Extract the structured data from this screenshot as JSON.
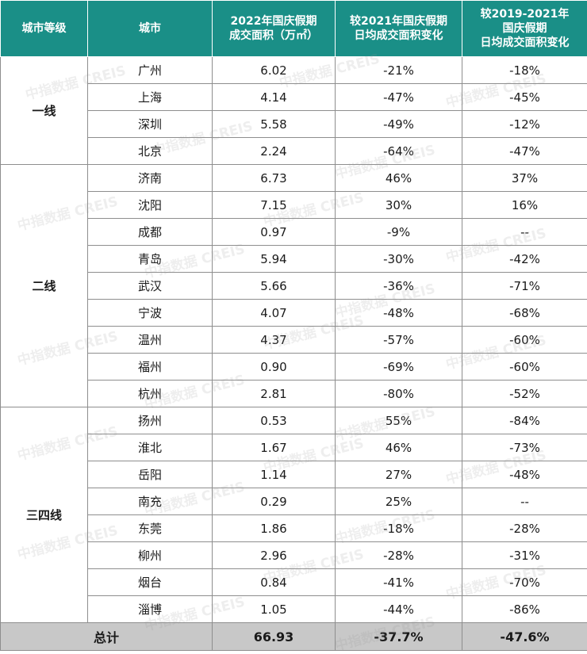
{
  "headers": {
    "tier": "城市等级",
    "city": "城市",
    "area_2022_l1": "2022年国庆假期",
    "area_2022_l2": "成交面积（万㎡）",
    "vs2021_l1": "较2021年国庆假期",
    "vs2021_l2": "日均成交面积变化",
    "vs2019_l1": "较2019-2021年",
    "vs2019_l2": "国庆假期",
    "vs2019_l3": "日均成交面积变化"
  },
  "groups": [
    {
      "tier": "一线",
      "rows": [
        {
          "city": "广州",
          "area": "6.02",
          "vs2021": "-21%",
          "vs2019": "-18%"
        },
        {
          "city": "上海",
          "area": "4.14",
          "vs2021": "-47%",
          "vs2019": "-45%"
        },
        {
          "city": "深圳",
          "area": "5.58",
          "vs2021": "-49%",
          "vs2019": "-12%"
        },
        {
          "city": "北京",
          "area": "2.24",
          "vs2021": "-64%",
          "vs2019": "-47%"
        }
      ]
    },
    {
      "tier": "二线",
      "rows": [
        {
          "city": "济南",
          "area": "6.73",
          "vs2021": "46%",
          "vs2019": "37%"
        },
        {
          "city": "沈阳",
          "area": "7.15",
          "vs2021": "30%",
          "vs2019": "16%"
        },
        {
          "city": "成都",
          "area": "0.97",
          "vs2021": "-9%",
          "vs2019": "--"
        },
        {
          "city": "青岛",
          "area": "5.94",
          "vs2021": "-30%",
          "vs2019": "-42%"
        },
        {
          "city": "武汉",
          "area": "5.66",
          "vs2021": "-36%",
          "vs2019": "-71%"
        },
        {
          "city": "宁波",
          "area": "4.07",
          "vs2021": "-48%",
          "vs2019": "-68%"
        },
        {
          "city": "温州",
          "area": "4.37",
          "vs2021": "-57%",
          "vs2019": "-60%"
        },
        {
          "city": "福州",
          "area": "0.90",
          "vs2021": "-69%",
          "vs2019": "-60%"
        },
        {
          "city": "杭州",
          "area": "2.81",
          "vs2021": "-80%",
          "vs2019": "-52%"
        }
      ]
    },
    {
      "tier": "三四线",
      "rows": [
        {
          "city": "扬州",
          "area": "0.53",
          "vs2021": "55%",
          "vs2019": "-84%"
        },
        {
          "city": "淮北",
          "area": "1.67",
          "vs2021": "46%",
          "vs2019": "-73%"
        },
        {
          "city": "岳阳",
          "area": "1.14",
          "vs2021": "27%",
          "vs2019": "-48%"
        },
        {
          "city": "南充",
          "area": "0.29",
          "vs2021": "25%",
          "vs2019": "--"
        },
        {
          "city": "东莞",
          "area": "1.86",
          "vs2021": "-18%",
          "vs2019": "-28%"
        },
        {
          "city": "柳州",
          "area": "2.96",
          "vs2021": "-28%",
          "vs2019": "-31%"
        },
        {
          "city": "烟台",
          "area": "0.84",
          "vs2021": "-41%",
          "vs2019": "-70%"
        },
        {
          "city": "淄博",
          "area": "1.05",
          "vs2021": "-44%",
          "vs2019": "-86%"
        }
      ]
    }
  ],
  "total": {
    "label": "总计",
    "area": "66.93",
    "vs2021": "-37.7%",
    "vs2019": "-47.6%"
  },
  "watermark": "中指数据 CREIS",
  "colors": {
    "header_bg": "#1a8f87",
    "total_bg": "#c8c8c8",
    "border": "#8e8e8e"
  }
}
